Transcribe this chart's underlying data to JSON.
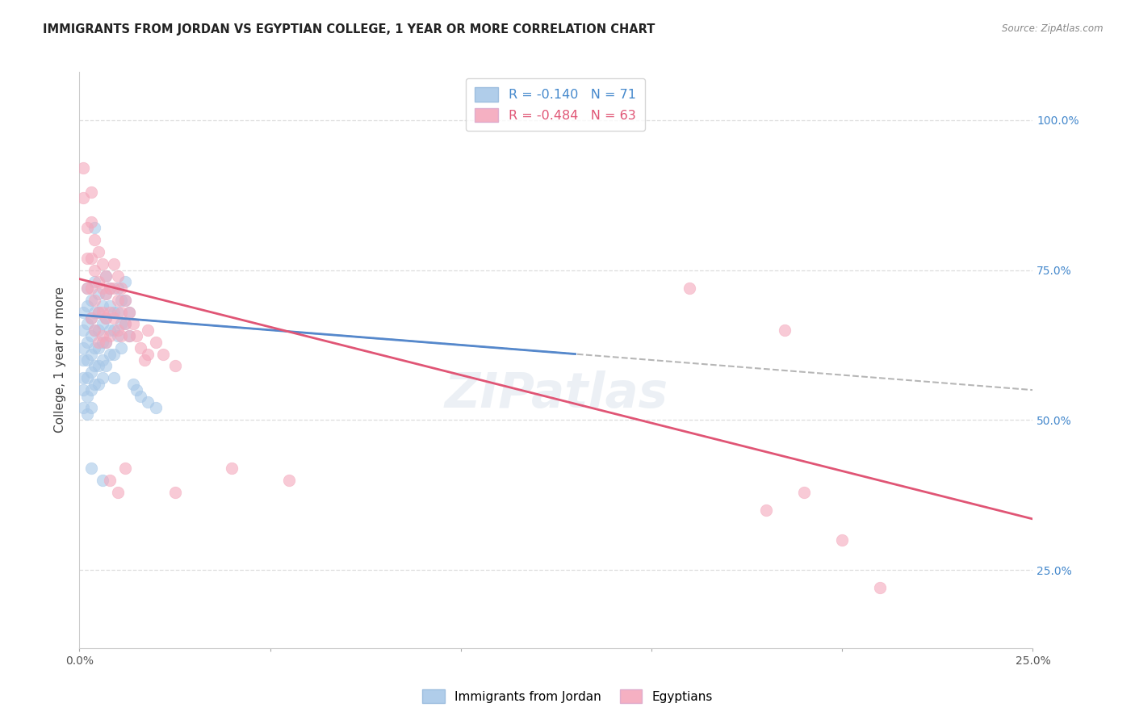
{
  "title": "IMMIGRANTS FROM JORDAN VS EGYPTIAN COLLEGE, 1 YEAR OR MORE CORRELATION CHART",
  "source": "Source: ZipAtlas.com",
  "ylabel": "College, 1 year or more",
  "right_yticklabels": [
    "25.0%",
    "50.0%",
    "75.0%",
    "100.0%"
  ],
  "ytick_positions": [
    0.25,
    0.5,
    0.75,
    1.0
  ],
  "xlim": [
    0.0,
    0.25
  ],
  "ylim": [
    0.12,
    1.08
  ],
  "legend_labels_bottom": [
    "Immigrants from Jordan",
    "Egyptians"
  ],
  "jordan_color": "#a8c8e8",
  "jordan_edge": "#6699cc",
  "egypt_color": "#f4a8bc",
  "egypt_edge": "#e06080",
  "jordan_line_color": "#5588cc",
  "egypt_line_color": "#e05575",
  "dashed_color": "#aaaaaa",
  "background_color": "#ffffff",
  "grid_color": "#dddddd",
  "jordan_R": -0.14,
  "jordan_N": 71,
  "egypt_R": -0.484,
  "egypt_N": 63,
  "jordan_points": [
    [
      0.001,
      0.68
    ],
    [
      0.001,
      0.65
    ],
    [
      0.001,
      0.62
    ],
    [
      0.001,
      0.6
    ],
    [
      0.001,
      0.57
    ],
    [
      0.001,
      0.55
    ],
    [
      0.001,
      0.52
    ],
    [
      0.002,
      0.72
    ],
    [
      0.002,
      0.69
    ],
    [
      0.002,
      0.66
    ],
    [
      0.002,
      0.63
    ],
    [
      0.002,
      0.6
    ],
    [
      0.002,
      0.57
    ],
    [
      0.002,
      0.54
    ],
    [
      0.002,
      0.51
    ],
    [
      0.003,
      0.7
    ],
    [
      0.003,
      0.67
    ],
    [
      0.003,
      0.64
    ],
    [
      0.003,
      0.61
    ],
    [
      0.003,
      0.58
    ],
    [
      0.003,
      0.55
    ],
    [
      0.003,
      0.52
    ],
    [
      0.004,
      0.82
    ],
    [
      0.004,
      0.73
    ],
    [
      0.004,
      0.68
    ],
    [
      0.004,
      0.65
    ],
    [
      0.004,
      0.62
    ],
    [
      0.004,
      0.59
    ],
    [
      0.004,
      0.56
    ],
    [
      0.005,
      0.71
    ],
    [
      0.005,
      0.68
    ],
    [
      0.005,
      0.65
    ],
    [
      0.005,
      0.62
    ],
    [
      0.005,
      0.59
    ],
    [
      0.005,
      0.56
    ],
    [
      0.006,
      0.69
    ],
    [
      0.006,
      0.66
    ],
    [
      0.006,
      0.63
    ],
    [
      0.006,
      0.6
    ],
    [
      0.006,
      0.57
    ],
    [
      0.007,
      0.74
    ],
    [
      0.007,
      0.71
    ],
    [
      0.007,
      0.67
    ],
    [
      0.007,
      0.63
    ],
    [
      0.007,
      0.59
    ],
    [
      0.008,
      0.72
    ],
    [
      0.008,
      0.69
    ],
    [
      0.008,
      0.65
    ],
    [
      0.008,
      0.61
    ],
    [
      0.009,
      0.68
    ],
    [
      0.009,
      0.65
    ],
    [
      0.009,
      0.61
    ],
    [
      0.009,
      0.57
    ],
    [
      0.01,
      0.72
    ],
    [
      0.01,
      0.68
    ],
    [
      0.01,
      0.64
    ],
    [
      0.011,
      0.7
    ],
    [
      0.011,
      0.66
    ],
    [
      0.011,
      0.62
    ],
    [
      0.012,
      0.73
    ],
    [
      0.012,
      0.7
    ],
    [
      0.012,
      0.66
    ],
    [
      0.013,
      0.68
    ],
    [
      0.013,
      0.64
    ],
    [
      0.014,
      0.56
    ],
    [
      0.015,
      0.55
    ],
    [
      0.016,
      0.54
    ],
    [
      0.018,
      0.53
    ],
    [
      0.02,
      0.52
    ],
    [
      0.003,
      0.42
    ],
    [
      0.006,
      0.4
    ]
  ],
  "egypt_points": [
    [
      0.001,
      0.92
    ],
    [
      0.001,
      0.87
    ],
    [
      0.002,
      0.82
    ],
    [
      0.002,
      0.77
    ],
    [
      0.002,
      0.72
    ],
    [
      0.003,
      0.88
    ],
    [
      0.003,
      0.83
    ],
    [
      0.003,
      0.77
    ],
    [
      0.003,
      0.72
    ],
    [
      0.003,
      0.67
    ],
    [
      0.004,
      0.8
    ],
    [
      0.004,
      0.75
    ],
    [
      0.004,
      0.7
    ],
    [
      0.004,
      0.65
    ],
    [
      0.005,
      0.78
    ],
    [
      0.005,
      0.73
    ],
    [
      0.005,
      0.68
    ],
    [
      0.005,
      0.63
    ],
    [
      0.006,
      0.76
    ],
    [
      0.006,
      0.72
    ],
    [
      0.006,
      0.68
    ],
    [
      0.006,
      0.64
    ],
    [
      0.007,
      0.74
    ],
    [
      0.007,
      0.71
    ],
    [
      0.007,
      0.67
    ],
    [
      0.007,
      0.63
    ],
    [
      0.008,
      0.72
    ],
    [
      0.008,
      0.68
    ],
    [
      0.008,
      0.64
    ],
    [
      0.009,
      0.76
    ],
    [
      0.009,
      0.72
    ],
    [
      0.009,
      0.67
    ],
    [
      0.01,
      0.74
    ],
    [
      0.01,
      0.7
    ],
    [
      0.01,
      0.65
    ],
    [
      0.011,
      0.72
    ],
    [
      0.011,
      0.68
    ],
    [
      0.011,
      0.64
    ],
    [
      0.012,
      0.7
    ],
    [
      0.012,
      0.66
    ],
    [
      0.013,
      0.68
    ],
    [
      0.013,
      0.64
    ],
    [
      0.014,
      0.66
    ],
    [
      0.015,
      0.64
    ],
    [
      0.016,
      0.62
    ],
    [
      0.017,
      0.6
    ],
    [
      0.018,
      0.65
    ],
    [
      0.018,
      0.61
    ],
    [
      0.02,
      0.63
    ],
    [
      0.022,
      0.61
    ],
    [
      0.025,
      0.59
    ],
    [
      0.008,
      0.4
    ],
    [
      0.01,
      0.38
    ],
    [
      0.012,
      0.42
    ],
    [
      0.025,
      0.38
    ],
    [
      0.04,
      0.42
    ],
    [
      0.055,
      0.4
    ],
    [
      0.16,
      0.72
    ],
    [
      0.185,
      0.65
    ],
    [
      0.19,
      0.38
    ],
    [
      0.2,
      0.3
    ],
    [
      0.21,
      0.22
    ],
    [
      0.18,
      0.35
    ]
  ]
}
